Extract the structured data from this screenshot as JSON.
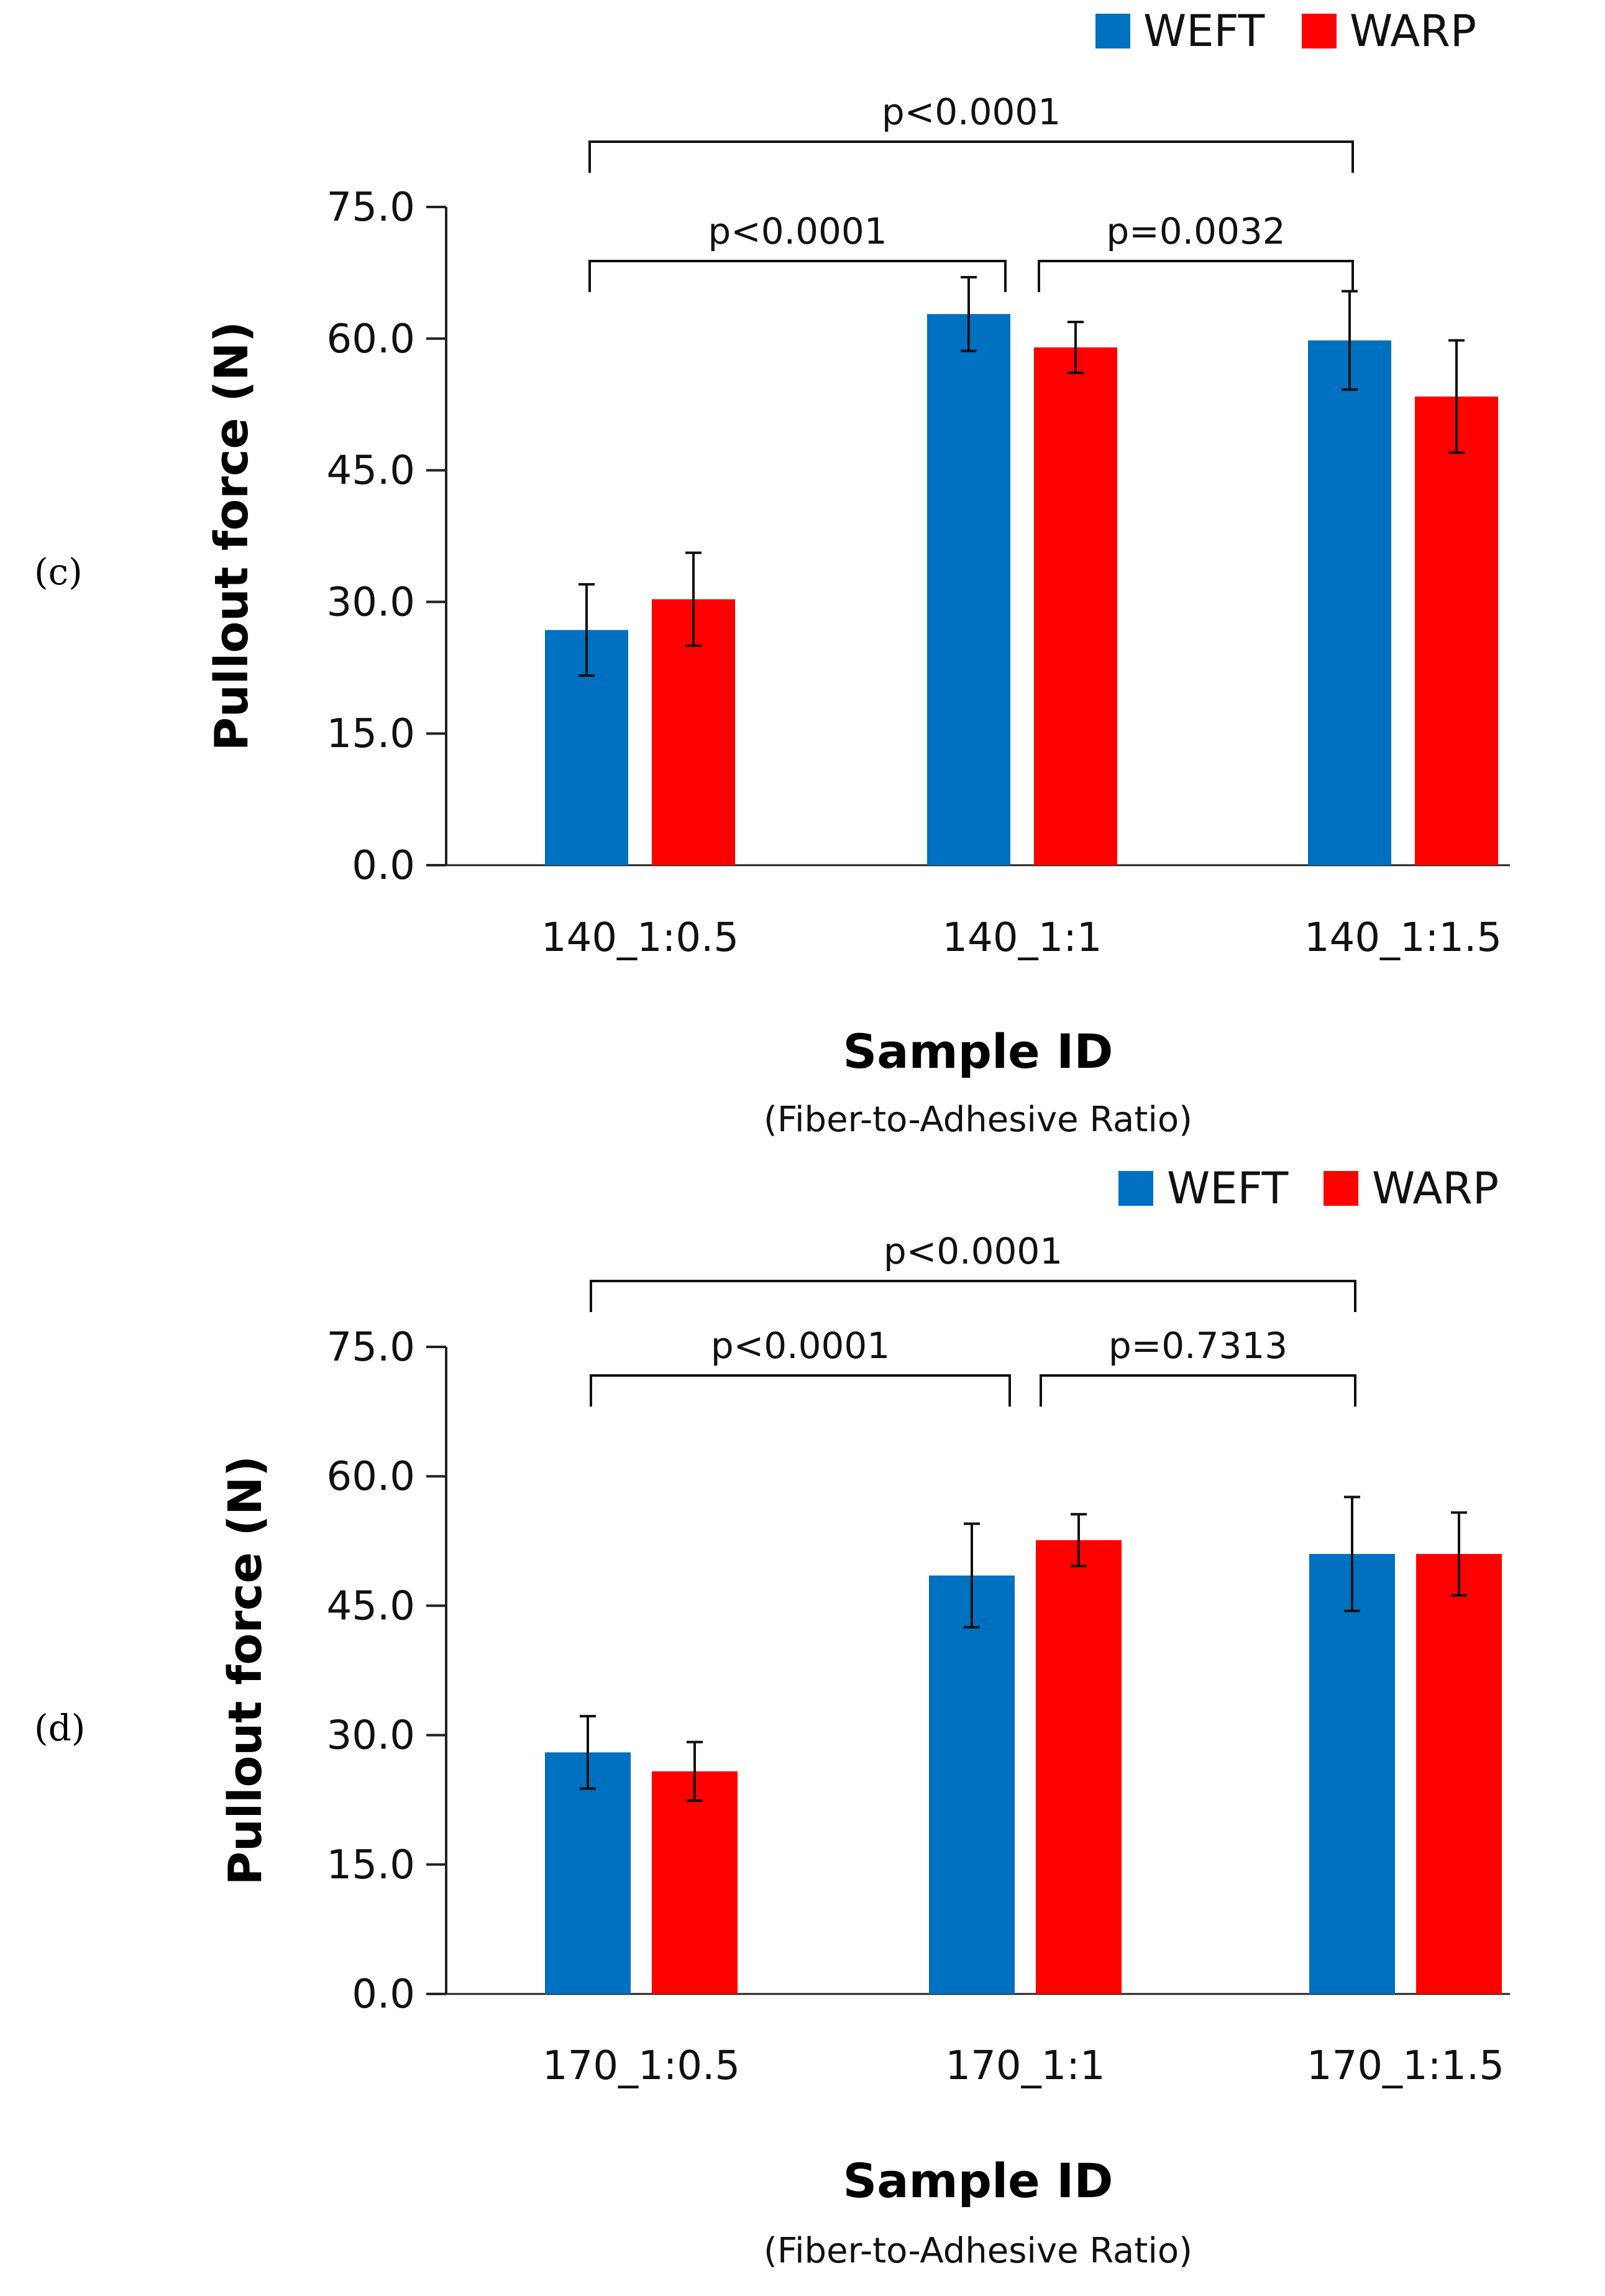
{
  "chart_data": [
    {
      "panel_label": "(c)",
      "type": "bar",
      "categories": [
        "140_1:0.5",
        "140_1:1",
        "140_1:1.5"
      ],
      "series": [
        {
          "name": "WEFT",
          "color": "#0070c0",
          "values": [
            26.8,
            62.8,
            59.8
          ],
          "errors": [
            5.2,
            4.2,
            5.6
          ]
        },
        {
          "name": "WARP",
          "color": "#ff0000",
          "values": [
            30.3,
            59.0,
            53.4
          ],
          "errors": [
            5.3,
            2.9,
            6.4
          ]
        }
      ],
      "yticks": [
        "0.0",
        "15.0",
        "30.0",
        "45.0",
        "60.0",
        "75.0"
      ],
      "ylim": [
        0,
        75
      ],
      "ylabel": "Pullout force (N)",
      "xlabel": "Sample ID",
      "xsublabel": "(Fiber-to-Adhesive Ratio)",
      "comparisons": [
        {
          "from": 0,
          "to": 1,
          "label": "p<0.0001",
          "level": 1
        },
        {
          "from": 1,
          "to": 2,
          "label": "p=0.0032",
          "level": 1
        },
        {
          "from": 0,
          "to": 2,
          "label": "p<0.0001",
          "level": 2
        }
      ]
    },
    {
      "panel_label": "(d)",
      "type": "bar",
      "categories": [
        "170_1:0.5",
        "170_1:1",
        "170_1:1.5"
      ],
      "series": [
        {
          "name": "WEFT",
          "color": "#0070c0",
          "values": [
            28.0,
            48.5,
            51.0
          ],
          "errors": [
            4.2,
            6.0,
            6.6
          ]
        },
        {
          "name": "WARP",
          "color": "#ff0000",
          "values": [
            25.8,
            52.6,
            51.0
          ],
          "errors": [
            3.4,
            3.0,
            4.8
          ]
        }
      ],
      "yticks": [
        "0.0",
        "15.0",
        "30.0",
        "45.0",
        "60.0",
        "75.0"
      ],
      "ylim": [
        0,
        75
      ],
      "ylabel": "Pullout force (N)",
      "xlabel": "Sample ID",
      "xsublabel": "(Fiber-to-Adhesive Ratio)",
      "comparisons": [
        {
          "from": 0,
          "to": 1,
          "label": "p<0.0001",
          "level": 1
        },
        {
          "from": 1,
          "to": 2,
          "label": "p=0.7313",
          "level": 1
        },
        {
          "from": 0,
          "to": 2,
          "label": "p<0.0001",
          "level": 2
        }
      ]
    }
  ]
}
